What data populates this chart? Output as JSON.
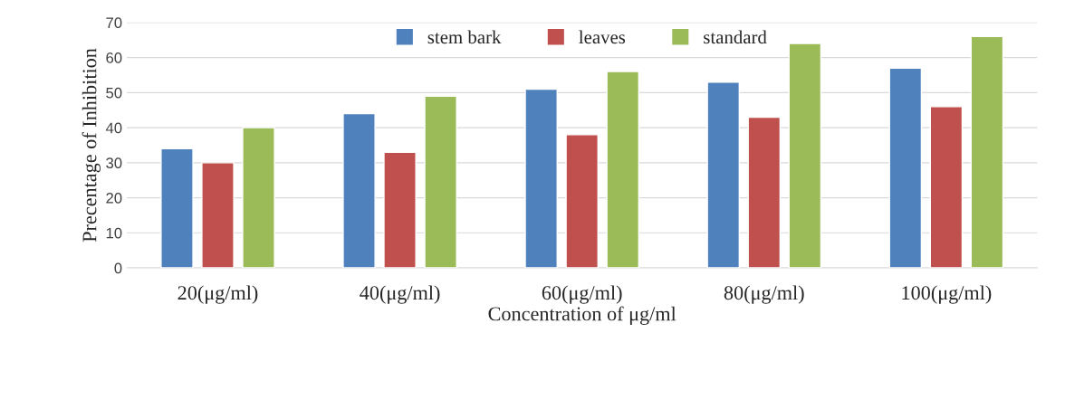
{
  "chart_data": {
    "type": "bar",
    "xlabel": "Concentration of μg/ml",
    "ylabel": "Precentage of Inhibition",
    "categories": [
      "20(μg/ml)",
      "40(μg/ml)",
      "60(μg/ml)",
      "80(μg/ml)",
      "100(μg/ml)"
    ],
    "series": [
      {
        "name": "stem bark",
        "color": "#4f81bd",
        "values": [
          34,
          44,
          51,
          53,
          57
        ]
      },
      {
        "name": "leaves",
        "color": "#c0504d",
        "values": [
          30,
          33,
          38,
          43,
          46
        ]
      },
      {
        "name": "standard",
        "color": "#9bbb59",
        "values": [
          40,
          49,
          56,
          64,
          66
        ]
      }
    ],
    "ylim": [
      0,
      70
    ],
    "yticks": [
      0,
      10,
      20,
      30,
      40,
      50,
      60,
      70
    ],
    "grid": "y",
    "legend": "top"
  }
}
